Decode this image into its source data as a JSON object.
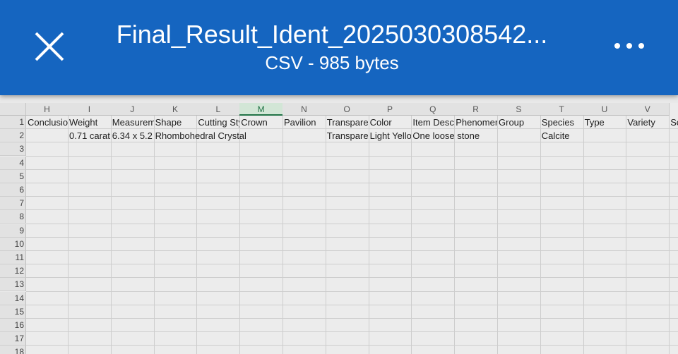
{
  "header": {
    "title": "Final_Result_Ident_2025030308542...",
    "subtitle": "CSV - 985 bytes"
  },
  "sheet": {
    "columns": [
      "H",
      "I",
      "J",
      "K",
      "L",
      "M",
      "N",
      "O",
      "P",
      "Q",
      "R",
      "S",
      "T",
      "U",
      "V"
    ],
    "selected_column": 5,
    "rows": [
      1,
      2,
      3,
      4,
      5,
      6,
      7,
      8,
      9,
      10,
      11,
      12,
      13,
      14,
      15,
      16,
      17,
      18
    ],
    "cells": [
      [
        "Conclusior",
        "Weight",
        "Measurem",
        "Shape",
        "Cutting Sty",
        "Crown",
        "Pavilion",
        "Transparer",
        "Color",
        "Item Descr",
        "Phenomer",
        "Group",
        "Species",
        "Type",
        "Variety",
        "Sc"
      ],
      [
        null,
        "0.71 carat",
        "6.34 x 5.2",
        "Rhombohedral Crystal",
        null,
        null,
        null,
        "Transparer",
        "Light Yello",
        "One loose stone",
        null,
        null,
        "Calcite",
        null,
        null,
        null
      ]
    ]
  }
}
